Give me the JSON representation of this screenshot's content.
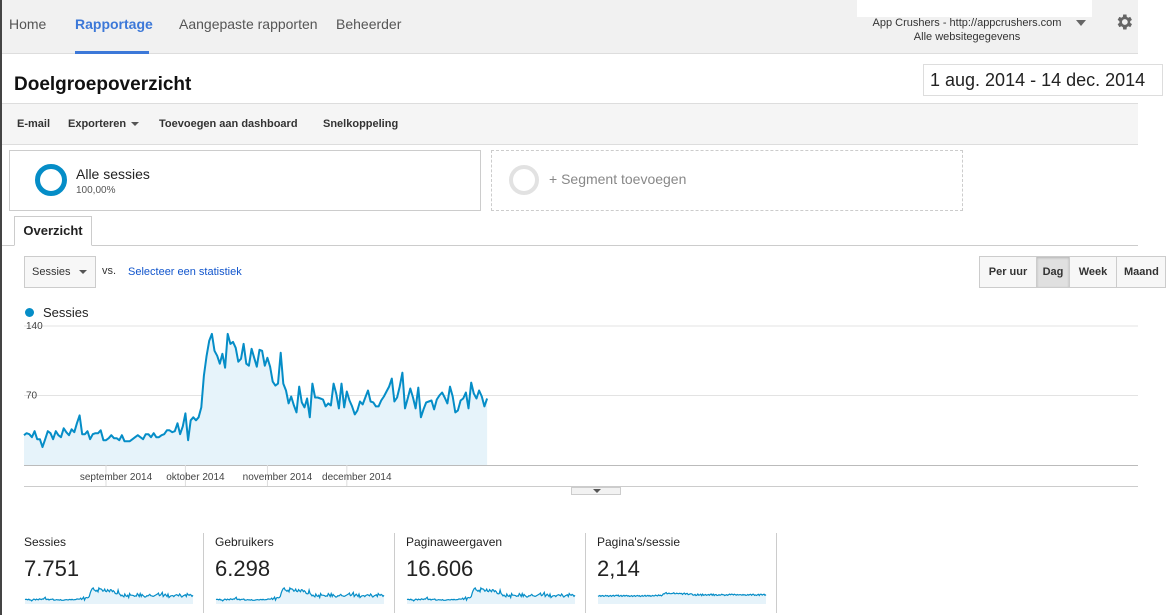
{
  "nav": {
    "tabs": [
      {
        "label": "Home",
        "active": false
      },
      {
        "label": "Rapportage",
        "active": true
      },
      {
        "label": "Aangepaste rapporten",
        "active": false
      },
      {
        "label": "Beheerder",
        "active": false
      }
    ],
    "account_name": "App Crushers - http://appcrushers.com",
    "account_view": "Alle websitegegevens",
    "settings_icon": "gear-icon"
  },
  "page": {
    "title": "Doelgroepoverzicht",
    "date_range": "1 aug. 2014 - 14 dec. 2014"
  },
  "toolbar": {
    "email": "E-mail",
    "export": "Exporteren",
    "add_dashboard": "Toevoegen aan dashboard",
    "shortcut": "Snelkoppeling"
  },
  "segments": {
    "active_name": "Alle sessies",
    "active_pct": "100,00%",
    "add_label": "+ Segment toevoegen"
  },
  "overview_tab": "Overzicht",
  "controls": {
    "metric": "Sessies",
    "vs": "vs.",
    "select_stat": "Selecteer een statistiek",
    "granularity": [
      {
        "label": "Per uur",
        "active": false
      },
      {
        "label": "Dag",
        "active": true
      },
      {
        "label": "Week",
        "active": false
      },
      {
        "label": "Maand",
        "active": false
      }
    ]
  },
  "colors": {
    "accent": "#3c78d8",
    "series": "#058dc7",
    "fill": "#e6f3fa"
  },
  "chart_data": {
    "type": "area",
    "series": [
      {
        "name": "Sessies",
        "values": [
          30,
          32,
          31,
          28,
          34,
          26,
          26,
          18,
          26,
          34,
          32,
          26,
          34,
          30,
          28,
          37,
          33,
          30,
          36,
          33,
          42,
          50,
          31,
          31,
          34,
          26,
          31,
          32,
          32,
          35,
          25,
          25,
          27,
          30,
          27,
          27,
          25,
          30,
          24,
          24,
          24,
          26,
          28,
          30,
          28,
          26,
          31,
          31,
          28,
          32,
          28,
          28,
          30,
          31,
          35,
          35,
          33,
          34,
          42,
          31,
          39,
          52,
          25,
          45,
          48,
          45,
          48,
          58,
          90,
          110,
          125,
          132,
          115,
          110,
          102,
          112,
          98,
          132,
          122,
          124,
          118,
          104,
          107,
          122,
          102,
          100,
          117,
          108,
          99,
          116,
          115,
          100,
          108,
          99,
          84,
          80,
          82,
          113,
          82,
          75,
          62,
          69,
          60,
          53,
          79,
          63,
          58,
          67,
          48,
          82,
          68,
          68,
          67,
          66,
          59,
          62,
          60,
          82,
          72,
          57,
          82,
          58,
          74,
          65,
          59,
          51,
          55,
          64,
          61,
          68,
          75,
          64,
          63,
          59,
          59,
          65,
          69,
          74,
          79,
          87,
          64,
          68,
          79,
          93,
          57,
          67,
          77,
          68,
          57,
          78,
          48,
          56,
          63,
          64,
          65,
          56,
          66,
          70,
          73,
          68,
          62,
          79,
          69,
          53,
          55,
          65,
          67,
          73,
          57,
          83,
          72,
          67,
          75,
          69,
          59,
          67
        ],
        "visible_values": "see x_start_label"
      }
    ],
    "x_labels": [
      "september 2014",
      "oktober 2014",
      "november 2014",
      "december 2014"
    ],
    "y_ticks": [
      140,
      70
    ],
    "ylim": [
      0,
      140
    ],
    "grid": true
  },
  "metrics": [
    {
      "label": "Sessies",
      "value": "7.751"
    },
    {
      "label": "Gebruikers",
      "value": "6.298"
    },
    {
      "label": "Paginaweergaven",
      "value": "16.606"
    },
    {
      "label": "Pagina's/sessie",
      "value": "2,14"
    }
  ]
}
